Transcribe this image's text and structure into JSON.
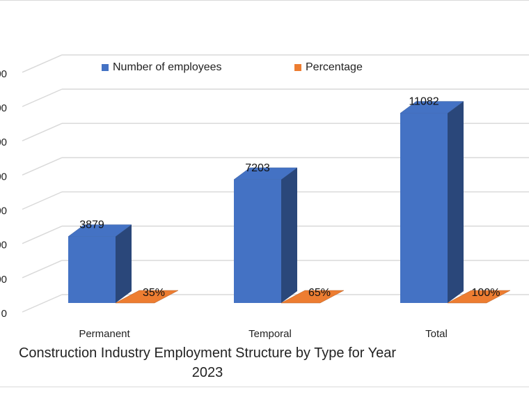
{
  "chart_data": {
    "type": "bar",
    "title_line1": "Construction Industry Employment Structure by Type for Year",
    "title_line2": "2023",
    "categories": [
      "Permanent",
      "Temporal",
      "Total"
    ],
    "series": [
      {
        "name": "Number of employees",
        "color": "#4472C4",
        "values": [
          3879,
          7203,
          11082
        ],
        "labels": [
          "3879",
          "7203",
          "11082"
        ]
      },
      {
        "name": "Percentage",
        "color": "#ED7D31",
        "values": [
          35,
          65,
          100
        ],
        "labels": [
          "35%",
          "65%",
          "100%"
        ]
      }
    ],
    "y_tick_labels": [
      "0",
      "00",
      "00",
      "00",
      "00",
      "00",
      "00",
      "00"
    ],
    "ylim": [
      0,
      14000
    ],
    "grid": true,
    "legend_position": "top"
  }
}
